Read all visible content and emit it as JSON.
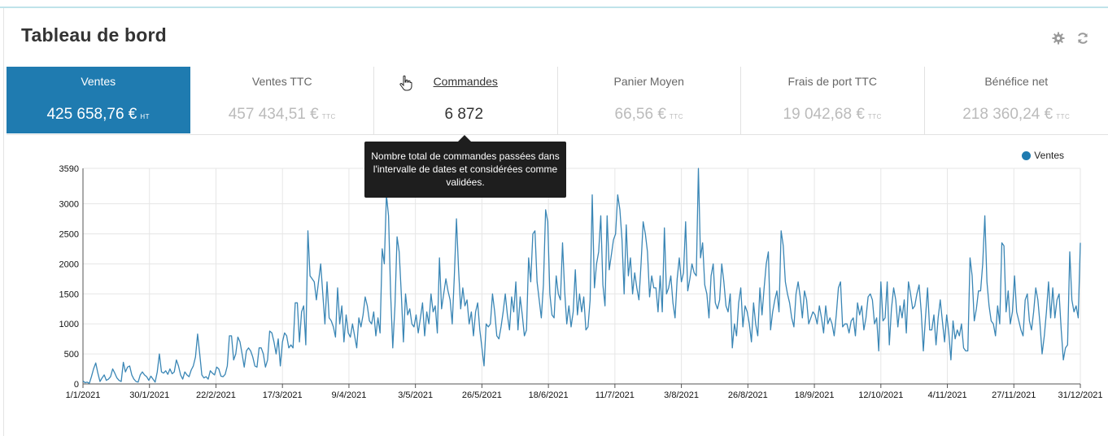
{
  "dashboard": {
    "title": "Tableau de bord",
    "icons": [
      "gear-icon",
      "refresh-icon"
    ]
  },
  "kpis": [
    {
      "label": "Ventes",
      "value": "425 658,76 €",
      "unit": "HT",
      "state": "active"
    },
    {
      "label": "Ventes TTC",
      "value": "457 434,51 €",
      "unit": "TTC",
      "state": "normal"
    },
    {
      "label": "Commandes",
      "value": "6 872",
      "unit": "",
      "state": "hover"
    },
    {
      "label": "Panier Moyen",
      "value": "66,56 €",
      "unit": "TTC",
      "state": "normal"
    },
    {
      "label": "Frais de port TTC",
      "value": "19 042,68 €",
      "unit": "TTC",
      "state": "normal"
    },
    {
      "label": "Bénéfice net",
      "value": "218 360,24 €",
      "unit": "TTC",
      "state": "normal"
    }
  ],
  "tooltip": {
    "text": "Nombre total de commandes passées dans l'intervalle de dates et considérées comme validées."
  },
  "colors": {
    "accent": "#1f7bb0",
    "line": "#3a86b5",
    "tooltip_bg": "#1e1e1e"
  },
  "chart_data": {
    "type": "line",
    "legend": "Ventes",
    "legend_position": "top-right",
    "grid": true,
    "ylim": [
      0,
      3590
    ],
    "y_ticks": [
      "0",
      "500",
      "1000",
      "1500",
      "2000",
      "2500",
      "3000",
      "3590"
    ],
    "x_ticks": [
      "1/1/2021",
      "30/1/2021",
      "22/2/2021",
      "17/3/2021",
      "9/4/2021",
      "3/5/2021",
      "26/5/2021",
      "18/6/2021",
      "11/7/2021",
      "3/8/2021",
      "26/8/2021",
      "18/9/2021",
      "12/10/2021",
      "4/11/2021",
      "27/11/2021",
      "31/12/2021"
    ],
    "series": [
      {
        "name": "Ventes",
        "values": [
          50,
          20,
          30,
          10,
          120,
          250,
          350,
          180,
          40,
          100,
          150,
          60,
          80,
          120,
          250,
          180,
          100,
          60,
          40,
          360,
          200,
          280,
          300,
          150,
          80,
          40,
          30,
          150,
          200,
          150,
          120,
          60,
          130,
          80,
          30,
          200,
          500,
          200,
          180,
          220,
          160,
          250,
          170,
          200,
          400,
          300,
          150,
          80,
          200,
          150,
          120,
          230,
          300,
          450,
          830,
          500,
          150,
          100,
          120,
          80,
          220,
          180,
          150,
          280,
          250,
          130,
          120,
          160,
          300,
          800,
          800,
          400,
          500,
          780,
          700,
          500,
          280,
          550,
          600,
          550,
          450,
          300,
          280,
          600,
          600,
          500,
          280,
          400,
          880,
          850,
          700,
          500,
          750,
          300,
          700,
          850,
          800,
          600,
          650,
          600,
          1350,
          1350,
          700,
          1200,
          1300,
          650,
          2550,
          1800,
          1750,
          1700,
          1400,
          1700,
          2000,
          1500,
          1000,
          1700,
          1100,
          1050,
          950,
          780,
          1600,
          1000,
          1300,
          700,
          1150,
          850,
          780,
          1000,
          800,
          600,
          1100,
          950,
          1150,
          1450,
          1300,
          1050,
          1000,
          1200,
          800,
          1100,
          850,
          2250,
          2000,
          3150,
          2800,
          1500,
          600,
          1300,
          2450,
          2200,
          1500,
          700,
          1500,
          1150,
          1250,
          1000,
          950,
          1150,
          850,
          1100,
          1350,
          800,
          1200,
          1000,
          1500,
          1200,
          1300,
          850,
          2100,
          1250,
          1500,
          1750,
          1550,
          1400,
          1000,
          1800,
          2750,
          1900,
          1250,
          1600,
          1300,
          1400,
          1000,
          1200,
          800,
          1200,
          1350,
          900,
          600,
          300,
          1000,
          950,
          1000,
          1500,
          1200,
          800,
          750,
          950,
          1200,
          1500,
          1150,
          900,
          1450,
          1200,
          1700,
          900,
          1450,
          1150,
          800,
          900,
          2100,
          1700,
          2500,
          2550,
          1700,
          1400,
          1100,
          1650,
          2900,
          2700,
          1500,
          1150,
          1100,
          1800,
          1500,
          1400,
          2350,
          1550,
          1000,
          1300,
          950,
          1200,
          1900,
          1150,
          1500,
          1200,
          1450,
          900,
          950,
          1400,
          3150,
          1600,
          2000,
          2200,
          2800,
          1650,
          1300,
          2800,
          1900,
          2150,
          2400,
          2500,
          3150,
          2900,
          2400,
          1500,
          2650,
          1800,
          2100,
          1500,
          1850,
          1600,
          1400,
          2000,
          2700,
          2500,
          2200,
          1450,
          1800,
          1600,
          1600,
          1200,
          1800,
          1200,
          2600,
          1500,
          1600,
          1800,
          1350,
          1100,
          1750,
          2100,
          1700,
          1850,
          2700,
          1550,
          1750,
          2000,
          1850,
          1800,
          3590,
          2100,
          2350,
          1650,
          1500,
          1100,
          1800,
          2000,
          1350,
          1250,
          1400,
          2000,
          1700,
          1300,
          1200,
          1500,
          600,
          1000,
          800,
          1350,
          1600,
          950,
          1300,
          1200,
          1000,
          700,
          1350,
          1000,
          800,
          1600,
          1150,
          1600,
          2000,
          2200,
          900,
          1200,
          1400,
          1550,
          1200,
          2550,
          2300,
          1700,
          1500,
          1350,
          1100,
          950,
          1500,
          1700,
          1450,
          1100,
          1550,
          1400,
          1000,
          1100,
          1200,
          1150,
          1000,
          1300,
          1100,
          850,
          1300,
          1000,
          1100,
          1000,
          800,
          1150,
          1600,
          1700,
          950,
          1000,
          1000,
          850,
          1050,
          1100,
          800,
          1350,
          1150,
          1300,
          900,
          1100,
          1450,
          1500,
          1400,
          1000,
          1100,
          550,
          1700,
          1050,
          1100,
          1700,
          650,
          1250,
          1600,
          1400,
          950,
          1300,
          1100,
          1400,
          850,
          1700,
          1500,
          1250,
          1300,
          1500,
          1650,
          1200,
          550,
          1100,
          1600,
          900,
          900,
          1150,
          650,
          1100,
          1400,
          1050,
          700,
          1150,
          850,
          400,
          1050,
          750,
          900,
          800,
          1000,
          600,
          550,
          550,
          2100,
          1800,
          1050,
          1250,
          1550,
          1550,
          2000,
          2800,
          1700,
          1300,
          1050,
          1000,
          800,
          1300,
          1000,
          2350,
          2300,
          1200,
          1550,
          1000,
          1200,
          1800,
          1200,
          1050,
          900,
          800,
          1400,
          1500,
          1050,
          900,
          1200,
          1600,
          1400,
          1000,
          500,
          800,
          1200,
          1700,
          1100,
          1600,
          1100,
          1400,
          1500,
          900,
          400,
          600,
          650,
          2200,
          1400,
          1200,
          1300,
          1100,
          2350
        ]
      }
    ]
  }
}
